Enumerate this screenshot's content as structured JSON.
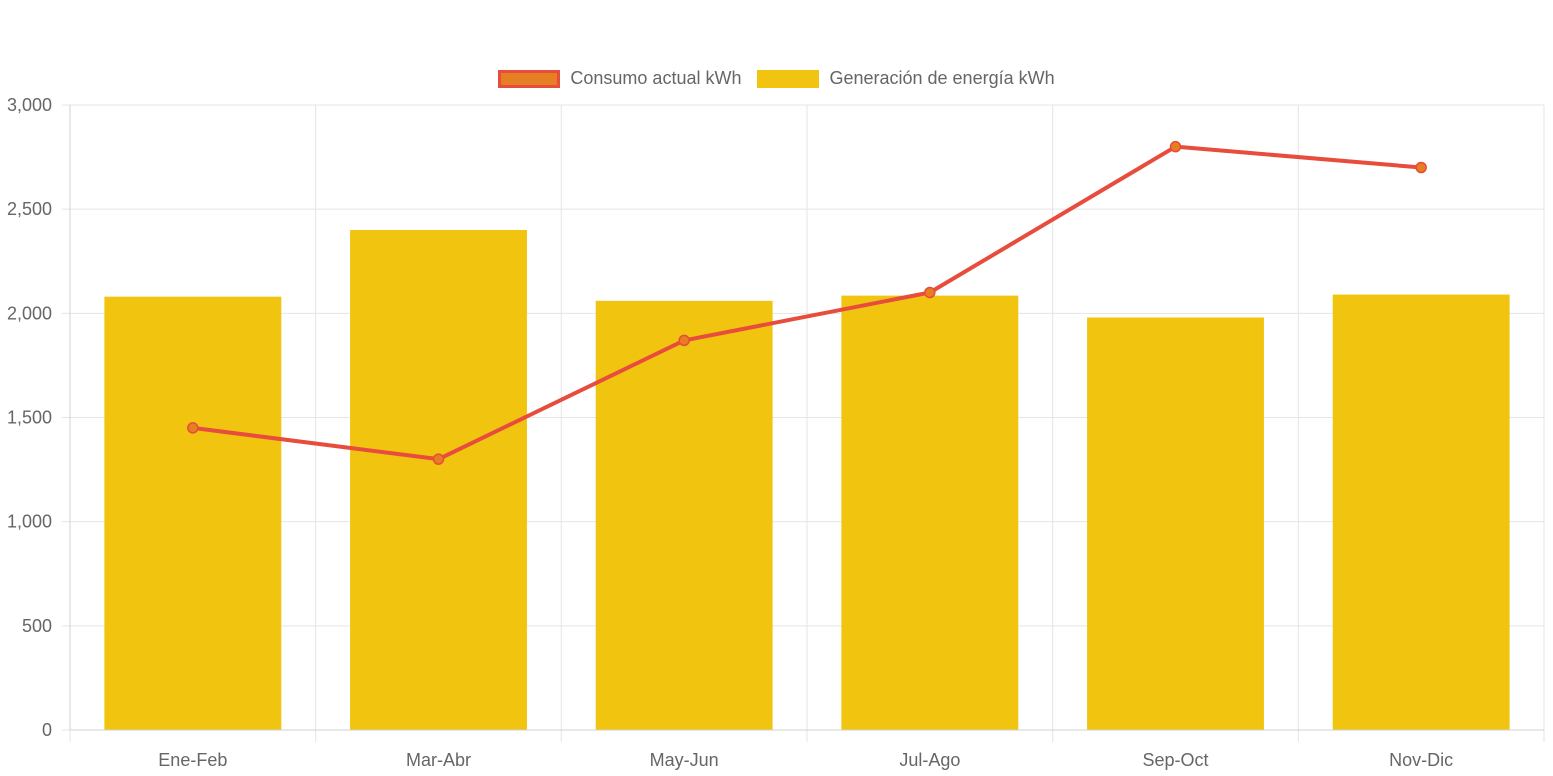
{
  "legend": {
    "series_line_label": "Consumo actual kWh",
    "series_bar_label": "Generación de energía kWh"
  },
  "colors": {
    "bar": "#f1c40f",
    "line": "#e74c3c",
    "point": "#e67e22",
    "grid": "#e5e5e5",
    "text": "#666666"
  },
  "chart_data": {
    "type": "bar",
    "categories": [
      "Ene-Feb",
      "Mar-Abr",
      "May-Jun",
      "Jul-Ago",
      "Sep-Oct",
      "Nov-Dic"
    ],
    "series": [
      {
        "name": "Generación de energía kWh",
        "type": "bar",
        "values": [
          2080,
          2400,
          2060,
          2085,
          1980,
          2090
        ]
      },
      {
        "name": "Consumo actual kWh",
        "type": "line",
        "values": [
          1450,
          1300,
          1870,
          2100,
          2800,
          2700
        ]
      }
    ],
    "yticks": [
      "0",
      "500",
      "1,000",
      "1,500",
      "2,000",
      "2,500",
      "3,000"
    ],
    "ylim": [
      0,
      3000
    ],
    "grid": true,
    "legend_position": "top-center",
    "title": "",
    "xlabel": "",
    "ylabel": ""
  }
}
